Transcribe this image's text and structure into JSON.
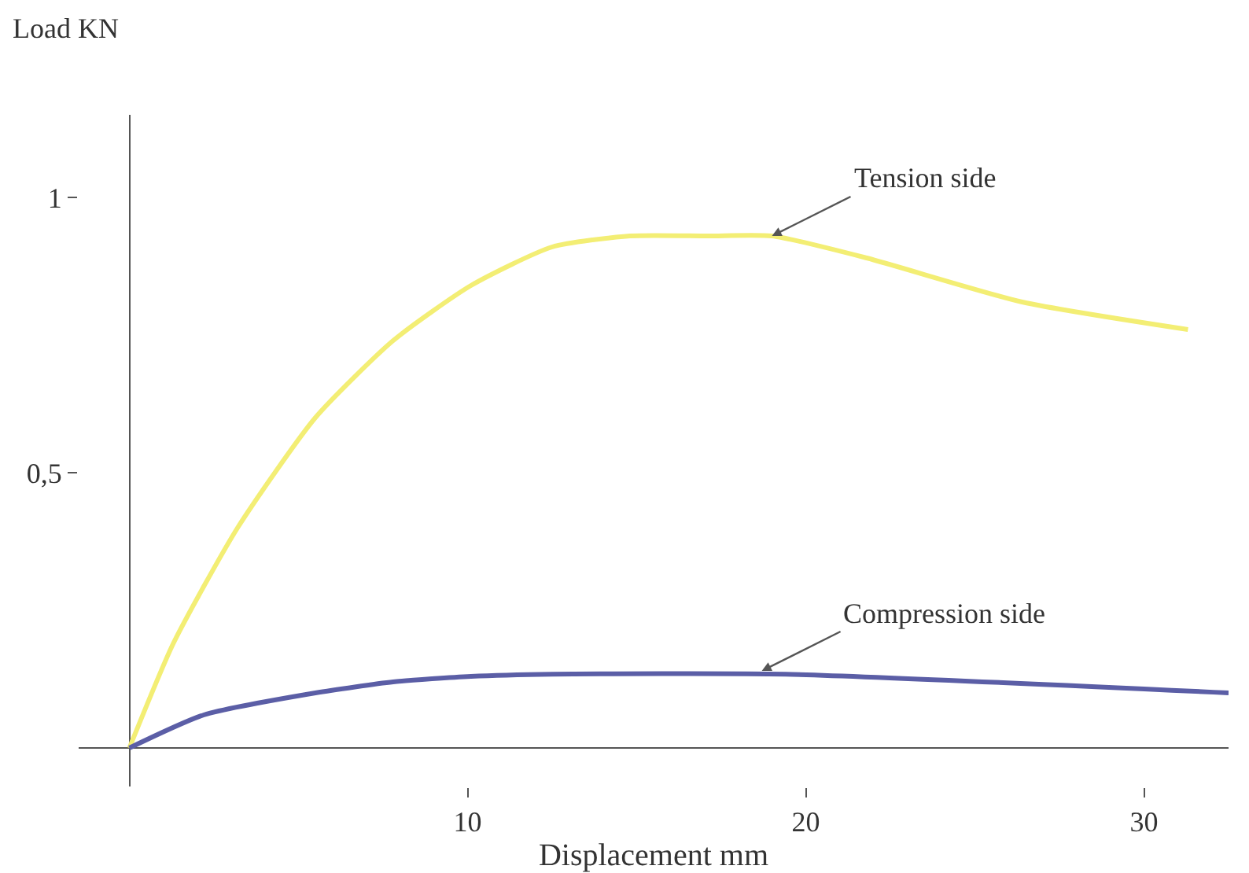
{
  "chart_data": {
    "type": "line",
    "xlabel": "Displacement mm",
    "ylabel": "Load KN",
    "xlim": [
      -1.5,
      32.5
    ],
    "ylim": [
      -0.07,
      1.15
    ],
    "xticks": [
      10,
      20,
      30
    ],
    "yticks": [
      {
        "value": 0.5,
        "label": "0,5"
      },
      1
    ],
    "grid": false,
    "marker": "none",
    "line_style": "solid",
    "series": [
      {
        "color": "#f3ee74",
        "x": [
          0,
          1.3,
          3.2,
          5.5,
          7.8,
          10.1,
          12.5,
          14.8,
          17.1,
          19,
          21.8,
          26.4,
          31.3
        ],
        "values": [
          0,
          0.19,
          0.4,
          0.6,
          0.74,
          0.84,
          0.91,
          0.93,
          0.93,
          0.93,
          0.89,
          0.81,
          0.76
        ]
      },
      {
        "color": "#5b5ea6",
        "x": [
          0,
          2.2,
          5.5,
          7.8,
          10.1,
          12.5,
          19.4,
          32.5
        ],
        "values": [
          0,
          0.06,
          0.1,
          0.12,
          0.13,
          0.134,
          0.134,
          0.1
        ]
      }
    ],
    "annotations": [
      {
        "text": "Tension side",
        "x": 19,
        "y": 0.93
      },
      {
        "text": "Compression side",
        "x": 18.7,
        "y": 0.14
      }
    ]
  }
}
